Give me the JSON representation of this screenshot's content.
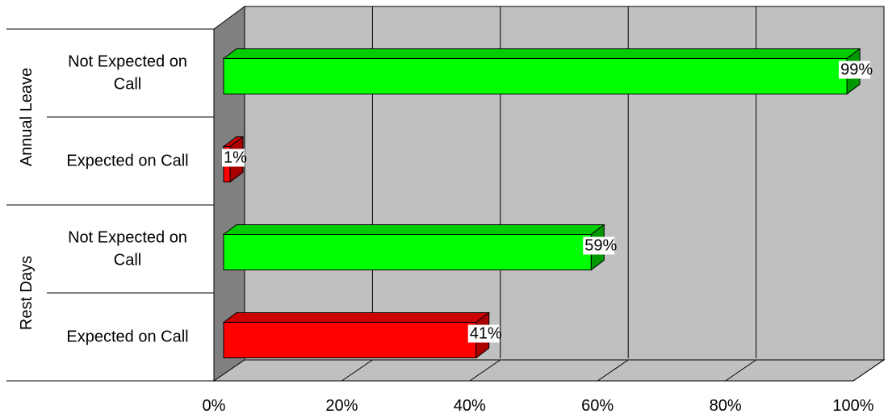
{
  "chart_data": {
    "type": "bar",
    "orientation": "horizontal",
    "style": "3d",
    "title": "",
    "xlabel": "",
    "ylabel": "",
    "xlim": [
      0,
      100
    ],
    "x_ticks": [
      "0%",
      "20%",
      "40%",
      "60%",
      "80%",
      "100%"
    ],
    "grid": true,
    "groups": [
      {
        "name": "Annual Leave",
        "bars": [
          {
            "label": "Not Expected on Call",
            "value": 99,
            "value_label": "99%",
            "color": "#00FF00"
          },
          {
            "label": "Expected on Call",
            "value": 1,
            "value_label": "1%",
            "color": "#FF0000"
          }
        ]
      },
      {
        "name": "Rest Days",
        "bars": [
          {
            "label": "Not Expected on Call",
            "value": 59,
            "value_label": "59%",
            "color": "#00FF00"
          },
          {
            "label": "Expected on Call",
            "value": 41,
            "value_label": "41%",
            "color": "#FF0000"
          }
        ]
      }
    ]
  }
}
